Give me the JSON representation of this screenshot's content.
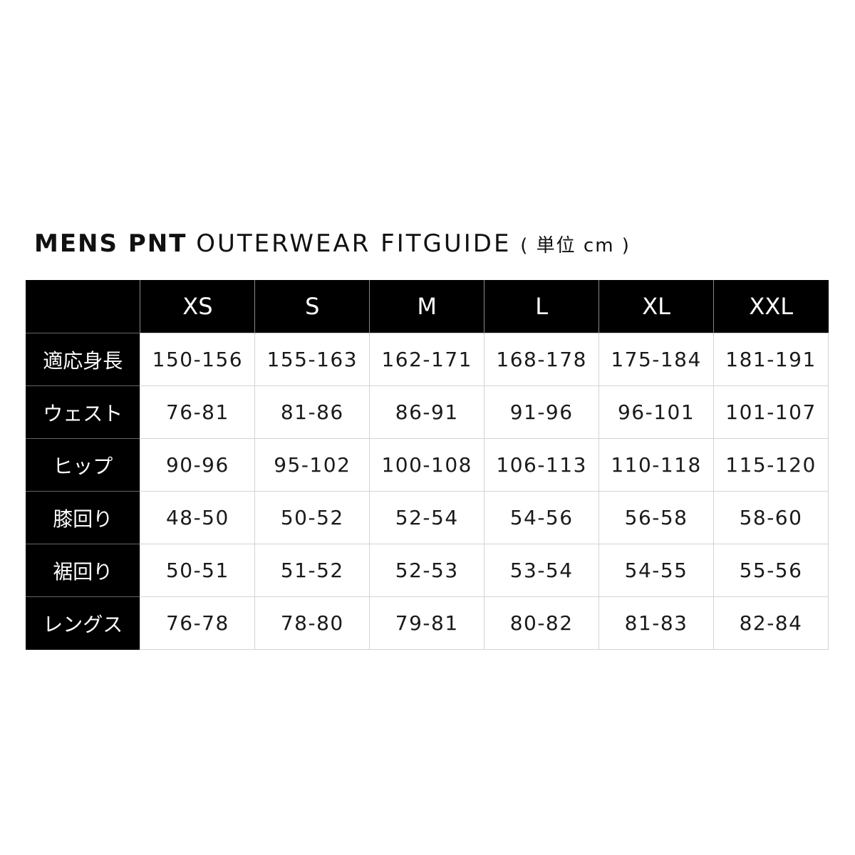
{
  "title": {
    "bold": "MENS PNT",
    "light": "OUTERWEAR FITGUIDE",
    "unit": "( 単位 cm )"
  },
  "table": {
    "sizes": [
      "XS",
      "S",
      "M",
      "L",
      "XL",
      "XXL"
    ],
    "rows": [
      {
        "label": "適応身長",
        "values": [
          "150-156",
          "155-163",
          "162-171",
          "168-178",
          "175-184",
          "181-191"
        ]
      },
      {
        "label": "ウェスト",
        "values": [
          "76-81",
          "81-86",
          "86-91",
          "91-96",
          "96-101",
          "101-107"
        ]
      },
      {
        "label": "ヒップ",
        "values": [
          "90-96",
          "95-102",
          "100-108",
          "106-113",
          "110-118",
          "115-120"
        ]
      },
      {
        "label": "膝回り",
        "values": [
          "48-50",
          "50-52",
          "52-54",
          "54-56",
          "56-58",
          "58-60"
        ]
      },
      {
        "label": "裾回り",
        "values": [
          "50-51",
          "51-52",
          "52-53",
          "53-54",
          "54-55",
          "55-56"
        ]
      },
      {
        "label": "レングス",
        "values": [
          "76-78",
          "78-80",
          "79-81",
          "80-82",
          "81-83",
          "82-84"
        ]
      }
    ]
  }
}
